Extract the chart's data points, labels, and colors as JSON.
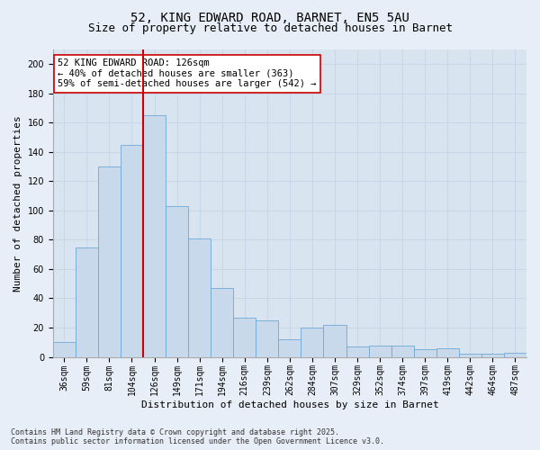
{
  "title_line1": "52, KING EDWARD ROAD, BARNET, EN5 5AU",
  "title_line2": "Size of property relative to detached houses in Barnet",
  "xlabel": "Distribution of detached houses by size in Barnet",
  "ylabel": "Number of detached properties",
  "categories": [
    "36sqm",
    "59sqm",
    "81sqm",
    "104sqm",
    "126sqm",
    "149sqm",
    "171sqm",
    "194sqm",
    "216sqm",
    "239sqm",
    "262sqm",
    "284sqm",
    "307sqm",
    "329sqm",
    "352sqm",
    "374sqm",
    "397sqm",
    "419sqm",
    "442sqm",
    "464sqm",
    "487sqm"
  ],
  "values": [
    10,
    75,
    130,
    145,
    165,
    103,
    81,
    47,
    27,
    25,
    12,
    20,
    22,
    7,
    8,
    8,
    5,
    6,
    2,
    2,
    3
  ],
  "bar_color": "#c9d9ec",
  "bar_edge_color": "#6fa8d6",
  "vline_color": "#cc0000",
  "vline_x_index": 4,
  "annotation_text": "52 KING EDWARD ROAD: 126sqm\n← 40% of detached houses are smaller (363)\n59% of semi-detached houses are larger (542) →",
  "annotation_box_color": "#ffffff",
  "annotation_box_edge": "#cc0000",
  "background_color": "#e8eef7",
  "plot_background": "#d8e4f0",
  "grid_color": "#c8d8e8",
  "footer_text": "Contains HM Land Registry data © Crown copyright and database right 2025.\nContains public sector information licensed under the Open Government Licence v3.0.",
  "ylim": [
    0,
    210
  ],
  "yticks": [
    0,
    20,
    40,
    60,
    80,
    100,
    120,
    140,
    160,
    180,
    200
  ],
  "title_fontsize": 10,
  "subtitle_fontsize": 9,
  "tick_fontsize": 7,
  "label_fontsize": 8,
  "annotation_fontsize": 7.5,
  "footer_fontsize": 6
}
